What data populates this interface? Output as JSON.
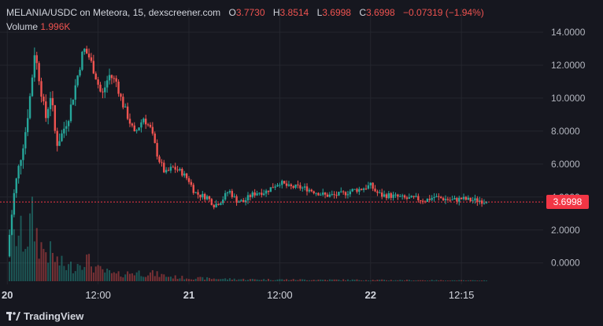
{
  "legend": {
    "pair": "MELANIA/USDC on Meteora, 15, dexscreener.com",
    "open_label": "O",
    "open": "3.7730",
    "high_label": "H",
    "high": "3.8514",
    "low_label": "L",
    "low": "3.6998",
    "close_label": "C",
    "close": "3.6998",
    "change": "−0.07319 (−1.94%)",
    "volume_label": "Volume",
    "volume": "1.996K"
  },
  "last_price": "3.6998",
  "brand": "TradingView",
  "colors": {
    "up": "#26a69a",
    "down": "#ef5350",
    "background": "#16171f",
    "grid": "#24262e",
    "price_line": "#f23645"
  },
  "chart_data": {
    "type": "candlestick",
    "y_ticks": [
      "14.0000",
      "12.0000",
      "10.0000",
      "8.0000",
      "6.0000",
      "4.0000",
      "2.0000",
      "0.0000"
    ],
    "y_tick_values": [
      14,
      12,
      10,
      8,
      6,
      4,
      2,
      0
    ],
    "ylim": [
      -1.3,
      15
    ],
    "x_ticks": [
      "20",
      "12:00",
      "21",
      "12:00",
      "22",
      "12:15"
    ],
    "x_tick_bold": [
      true,
      false,
      true,
      false,
      true,
      false
    ],
    "x_tick_positions": [
      0,
      0.5,
      1,
      1.5,
      2,
      2.5
    ],
    "xlim": [
      -0.04,
      2.95
    ],
    "last_price": 3.6998,
    "price_path": [
      [
        0.0,
        0.4
      ],
      [
        0.02,
        2.5
      ],
      [
        0.04,
        4.4
      ],
      [
        0.07,
        6.2
      ],
      [
        0.1,
        8.0
      ],
      [
        0.13,
        10.5
      ],
      [
        0.15,
        12.8
      ],
      [
        0.18,
        11.0
      ],
      [
        0.21,
        8.7
      ],
      [
        0.24,
        10.3
      ],
      [
        0.27,
        7.2
      ],
      [
        0.3,
        7.8
      ],
      [
        0.34,
        9.0
      ],
      [
        0.38,
        11.0
      ],
      [
        0.42,
        13.0
      ],
      [
        0.45,
        12.5
      ],
      [
        0.48,
        11.6
      ],
      [
        0.52,
        10.1
      ],
      [
        0.56,
        11.4
      ],
      [
        0.6,
        11.0
      ],
      [
        0.63,
        9.8
      ],
      [
        0.67,
        8.7
      ],
      [
        0.7,
        7.8
      ],
      [
        0.75,
        8.8
      ],
      [
        0.79,
        8.1
      ],
      [
        0.83,
        6.4
      ],
      [
        0.87,
        5.4
      ],
      [
        0.91,
        5.8
      ],
      [
        0.96,
        5.5
      ],
      [
        1.0,
        5.0
      ],
      [
        1.03,
        4.3
      ],
      [
        1.06,
        4.1
      ],
      [
        1.1,
        4.0
      ],
      [
        1.14,
        3.5
      ],
      [
        1.18,
        3.8
      ],
      [
        1.22,
        4.4
      ],
      [
        1.26,
        3.8
      ],
      [
        1.3,
        3.7
      ],
      [
        1.34,
        4.1
      ],
      [
        1.38,
        4.3
      ],
      [
        1.42,
        4.3
      ],
      [
        1.47,
        4.7
      ],
      [
        1.5,
        4.9
      ],
      [
        1.55,
        4.6
      ],
      [
        1.6,
        4.6
      ],
      [
        1.65,
        4.5
      ],
      [
        1.7,
        4.3
      ],
      [
        1.75,
        4.1
      ],
      [
        1.8,
        4.1
      ],
      [
        1.85,
        4.2
      ],
      [
        1.9,
        4.4
      ],
      [
        1.95,
        4.5
      ],
      [
        2.0,
        4.7
      ],
      [
        2.03,
        4.3
      ],
      [
        2.06,
        4.1
      ],
      [
        2.1,
        4.1
      ],
      [
        2.15,
        4.0
      ],
      [
        2.2,
        3.9
      ],
      [
        2.25,
        3.9
      ],
      [
        2.3,
        3.8
      ],
      [
        2.35,
        4.0
      ],
      [
        2.4,
        3.9
      ],
      [
        2.45,
        3.8
      ],
      [
        2.5,
        3.9
      ],
      [
        2.55,
        3.8
      ],
      [
        2.6,
        3.8
      ],
      [
        2.64,
        3.7
      ]
    ],
    "volume_path": [
      [
        0.0,
        0.3
      ],
      [
        0.05,
        0.75
      ],
      [
        0.1,
        0.65
      ],
      [
        0.14,
        0.95
      ],
      [
        0.18,
        0.55
      ],
      [
        0.23,
        0.45
      ],
      [
        0.28,
        0.3
      ],
      [
        0.33,
        0.22
      ],
      [
        0.38,
        0.25
      ],
      [
        0.42,
        0.38
      ],
      [
        0.45,
        0.3
      ],
      [
        0.5,
        0.18
      ],
      [
        0.6,
        0.1
      ],
      [
        0.7,
        0.14
      ],
      [
        0.8,
        0.12
      ],
      [
        0.9,
        0.07
      ],
      [
        1.0,
        0.05
      ],
      [
        1.3,
        0.03
      ],
      [
        1.6,
        0.025
      ],
      [
        2.0,
        0.02
      ],
      [
        2.64,
        0.01
      ]
    ]
  }
}
